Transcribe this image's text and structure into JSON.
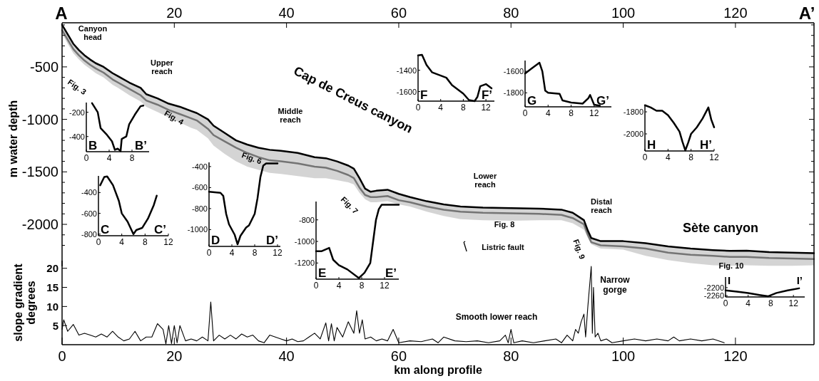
{
  "chart_data": [
    {
      "type": "line",
      "ylabel": "m water depth",
      "xlim": [
        0,
        134
      ],
      "x2lim": [
        0,
        134
      ],
      "x2ticks": [
        {
          "value": 0,
          "label": "A"
        },
        20,
        40,
        60,
        80,
        100,
        120,
        {
          "value": 134,
          "label": "A’"
        }
      ],
      "ylim": [
        -2400,
        -80
      ],
      "yticks": [
        {
          "value": -100,
          "label": null
        },
        {
          "value": -200,
          "label": null
        },
        {
          "value": -300,
          "label": null
        },
        {
          "value": -400,
          "label": null
        },
        -500,
        {
          "value": -600,
          "label": null
        },
        {
          "value": -700,
          "label": null
        },
        {
          "value": -800,
          "label": null
        },
        {
          "value": -900,
          "label": null
        },
        -1000,
        {
          "value": -1100,
          "label": null
        },
        {
          "value": -1200,
          "label": null
        },
        {
          "value": -1300,
          "label": null
        },
        {
          "value": -1400,
          "label": null
        },
        -1500,
        {
          "value": -1600,
          "label": null
        },
        {
          "value": -1700,
          "label": null
        },
        {
          "value": -1800,
          "label": null
        },
        {
          "value": -1900,
          "label": null
        },
        -2000,
        {
          "value": -2100,
          "label": null
        },
        {
          "value": -2200,
          "label": null
        }
      ],
      "x": [
        0,
        1,
        2,
        3,
        4,
        5,
        6,
        7.4,
        9,
        10,
        12,
        14,
        15,
        17,
        19,
        21,
        23,
        24,
        26,
        27,
        29,
        31,
        33,
        35,
        37,
        39,
        42,
        45,
        47,
        49,
        51,
        52,
        53,
        54,
        55,
        56,
        58,
        60,
        62,
        65,
        68,
        71,
        75,
        80,
        85,
        89,
        91,
        93,
        93.7,
        94.3,
        96,
        100,
        104,
        108,
        112,
        116,
        119,
        122,
        126,
        130,
        134
      ],
      "series": [
        {
          "color": "#000000",
          "values": [
            -100,
            -190,
            -280,
            -340,
            -390,
            -430,
            -465,
            -500,
            -560,
            -590,
            -650,
            -700,
            -760,
            -800,
            -850,
            -880,
            -920,
            -940,
            -1000,
            -1060,
            -1130,
            -1200,
            -1240,
            -1270,
            -1290,
            -1300,
            -1320,
            -1360,
            -1370,
            -1400,
            -1440,
            -1470,
            -1560,
            -1660,
            -1690,
            -1680,
            -1670,
            -1710,
            -1740,
            -1780,
            -1810,
            -1830,
            -1840,
            -1845,
            -1850,
            -1860,
            -1890,
            -1960,
            -2060,
            -2130,
            -2160,
            -2160,
            -2180,
            -2210,
            -2230,
            -2245,
            -2253,
            -2250,
            -2265,
            -2270,
            -2275
          ],
          "upper": [
            -100,
            -190,
            -280,
            -340,
            -390,
            -430,
            -465,
            -500,
            -560,
            -590,
            -650,
            -700,
            -760,
            -800,
            -850,
            -880,
            -920,
            -940,
            -1000,
            -1060,
            -1130,
            -1200,
            -1240,
            -1270,
            -1290,
            -1300,
            -1320,
            -1360,
            -1370,
            -1400,
            -1440,
            -1470,
            -1560,
            -1660,
            -1690,
            -1680,
            -1670,
            -1710,
            -1740,
            -1780,
            -1810,
            -1830,
            -1840,
            -1845,
            -1850,
            -1860,
            -1890,
            -1960,
            -2060,
            -2130,
            -2160,
            -2160,
            -2180,
            -2210,
            -2230,
            -2245,
            -2253,
            -2250,
            -2265,
            -2270,
            -2275
          ],
          "lower": [
            -180,
            -280,
            -370,
            -430,
            -480,
            -520,
            -560,
            -600,
            -670,
            -700,
            -770,
            -830,
            -880,
            -930,
            -980,
            -1030,
            -1080,
            -1100,
            -1180,
            -1250,
            -1330,
            -1400,
            -1450,
            -1480,
            -1510,
            -1520,
            -1540,
            -1560,
            -1560,
            -1580,
            -1600,
            -1620,
            -1700,
            -1760,
            -1790,
            -1790,
            -1780,
            -1810,
            -1830,
            -1880,
            -1920,
            -1950,
            -1960,
            -1965,
            -1960,
            -1960,
            -1990,
            -2050,
            -2130,
            -2190,
            -2230,
            -2240,
            -2300,
            -2340,
            -2370,
            -2390,
            -2395,
            -2390,
            -2395,
            -2395,
            -2390
          ]
        },
        {
          "color": "#8c8c8c",
          "values": [
            -150,
            -240,
            -330,
            -390,
            -440,
            -480,
            -515,
            -555,
            -620,
            -650,
            -710,
            -770,
            -820,
            -860,
            -910,
            -950,
            -990,
            -1010,
            -1090,
            -1150,
            -1210,
            -1270,
            -1320,
            -1360,
            -1390,
            -1400,
            -1420,
            -1450,
            -1460,
            -1490,
            -1530,
            -1560,
            -1650,
            -1720,
            -1740,
            -1740,
            -1730,
            -1770,
            -1790,
            -1830,
            -1860,
            -1880,
            -1890,
            -1895,
            -1900,
            -1910,
            -1940,
            -2000,
            -2100,
            -2170,
            -2200,
            -2210,
            -2230,
            -2270,
            -2290,
            -2300,
            -2310,
            -2310,
            -2320,
            -2325,
            -2330
          ]
        }
      ],
      "annotations": [
        "Canyon\nhead",
        "Upper\nreach",
        "Middle\nreach",
        "Cap de Creus canyon",
        "Lower\nreach",
        "Distal\nreach",
        "Sète canyon",
        "Fig. 3",
        "Fig. 4",
        "Fig. 6",
        "Fig. 7",
        "Fig. 8",
        "Fig. 9",
        "Fig. 10",
        "Listric fault"
      ]
    },
    {
      "type": "line",
      "xlabel": "km along profile",
      "ylabel": "slope gradient\ndegrees",
      "xlim": [
        0,
        134
      ],
      "xticks": [
        0,
        20,
        40,
        60,
        80,
        100,
        120
      ],
      "ylim": [
        0,
        22
      ],
      "yticks": [
        5,
        10,
        15,
        20
      ],
      "x": [
        0,
        0.3,
        1,
        2,
        3,
        4,
        5,
        6,
        7,
        8,
        9,
        10,
        11,
        12,
        13,
        14,
        15,
        16,
        17,
        18,
        18.5,
        19,
        19.5,
        20,
        20.5,
        21,
        22,
        23,
        24,
        25,
        26,
        26.5,
        27,
        28,
        29,
        30,
        31,
        32,
        33,
        34,
        35,
        36,
        37,
        38,
        39,
        40,
        41,
        42,
        43,
        44,
        45,
        46,
        47,
        47.5,
        48,
        48.5,
        49,
        50,
        51,
        52,
        52.5,
        53,
        53.5,
        54,
        55,
        56,
        57,
        58,
        59,
        60,
        62,
        64,
        66,
        67,
        68,
        70,
        72,
        74,
        76,
        78,
        79,
        79.5,
        80,
        80.5,
        82,
        84,
        86,
        88,
        89,
        90,
        91,
        91.5,
        92,
        92.5,
        93,
        93.3,
        93.7,
        94.3,
        94.5,
        94.7,
        95,
        95.5,
        96,
        97,
        98,
        100,
        102,
        104,
        106,
        108,
        109,
        110,
        112,
        114,
        116,
        118
      ],
      "series": [
        {
          "color": "#000000",
          "values": [
            4,
            6.5,
            3.5,
            5.3,
            2.5,
            3,
            2.5,
            2,
            2.8,
            2,
            3.5,
            2,
            1,
            1.5,
            3.5,
            1,
            2,
            2,
            5.5,
            4,
            0.2,
            5,
            0.3,
            5,
            0.5,
            5,
            1,
            1.5,
            1,
            2,
            1,
            11.2,
            1,
            2.5,
            1.5,
            2.5,
            1.5,
            2.8,
            2,
            2.5,
            1,
            0.5,
            2.5,
            2,
            1.5,
            1,
            1.5,
            0.8,
            1,
            2,
            3,
            1.5,
            5.7,
            1,
            5.5,
            1,
            4.5,
            2,
            6,
            3,
            8.9,
            3,
            6.5,
            1.5,
            2,
            1,
            1.5,
            1,
            4,
            0.5,
            1,
            0.8,
            1.5,
            0.5,
            2,
            1,
            0.8,
            1,
            0.5,
            1,
            2.5,
            0.5,
            4,
            0.5,
            1,
            0.5,
            1,
            1.5,
            0.5,
            2.5,
            1,
            4,
            3,
            6,
            8,
            2,
            10,
            20.5,
            3,
            15,
            2,
            3,
            1,
            1.5,
            0.5,
            1,
            1.5,
            1,
            1.5,
            1,
            2,
            1,
            1.5,
            1,
            1.5,
            0.5
          ]
        }
      ],
      "annotations": [
        "Smooth lower reach",
        "Narrow\ngorge"
      ]
    },
    {
      "type": "line",
      "xlim": [
        0,
        11
      ],
      "xticks": [
        0,
        4,
        8
      ],
      "ylim": [
        -525,
        -120
      ],
      "yticks": [
        -200,
        -400
      ],
      "x": [
        1,
        2,
        2.5,
        3.5,
        4.5,
        5,
        5.5,
        6,
        6.2,
        7,
        7.5,
        8.5,
        9.5,
        10
      ],
      "series": [
        {
          "color": "#000000",
          "values": [
            -125,
            -200,
            -330,
            -380,
            -440,
            -510,
            -500,
            -520,
            -420,
            -400,
            -300,
            -220,
            -150,
            -145
          ]
        }
      ],
      "annotations": [
        "B",
        "B’"
      ]
    },
    {
      "type": "line",
      "xlim": [
        0,
        12
      ],
      "xticks": [
        0,
        4,
        8,
        12
      ],
      "ylim": [
        -815,
        -240
      ],
      "yticks": [
        -400,
        -600,
        -800
      ],
      "x": [
        0.3,
        1,
        1.5,
        2.5,
        3.5,
        4,
        5,
        6,
        6.5,
        7.5,
        8.5,
        9.5,
        10
      ],
      "series": [
        {
          "color": "#000000",
          "values": [
            -330,
            -250,
            -245,
            -330,
            -480,
            -600,
            -680,
            -800,
            -760,
            -740,
            -650,
            -520,
            -430
          ]
        }
      ],
      "annotations": [
        "C",
        "C’"
      ]
    },
    {
      "type": "line",
      "xlim": [
        0,
        12.5
      ],
      "xticks": [
        0,
        4,
        8,
        12
      ],
      "ylim": [
        -1160,
        -360
      ],
      "yticks": [
        -400,
        -600,
        -800,
        -1000
      ],
      "x": [
        0,
        2,
        2.5,
        3,
        3.5,
        4.5,
        5,
        5.5,
        6.5,
        7,
        8,
        8.5,
        9,
        9.5,
        10,
        12
      ],
      "series": [
        {
          "color": "#000000",
          "values": [
            -640,
            -650,
            -680,
            -850,
            -950,
            -1050,
            -1140,
            -1060,
            -980,
            -960,
            -850,
            -700,
            -500,
            -390,
            -370,
            -370
          ]
        }
      ],
      "annotations": [
        "D",
        "D’"
      ]
    },
    {
      "type": "line",
      "xlim": [
        0,
        14.5
      ],
      "xticks": [
        0,
        4,
        8,
        12
      ],
      "ylim": [
        -1350,
        -630
      ],
      "yticks": [
        -800,
        -1000,
        -1200
      ],
      "x": [
        0,
        1,
        2.3,
        3,
        4,
        5.5,
        7.5,
        8.5,
        9.5,
        10,
        10.5,
        11,
        11.5,
        14.5
      ],
      "series": [
        {
          "color": "#000000",
          "values": [
            -1090,
            -1090,
            -1060,
            -1170,
            -1220,
            -1260,
            -1340,
            -1290,
            -1200,
            -1000,
            -800,
            -700,
            -660,
            -660
          ]
        }
      ],
      "annotations": [
        "E",
        "E’"
      ]
    },
    {
      "type": "line",
      "xlim": [
        0,
        13.5
      ],
      "xticks": [
        0,
        4,
        8,
        12
      ],
      "ylim": [
        -1690,
        -1255
      ],
      "yticks": [
        -1400,
        -1600
      ],
      "x": [
        0,
        0.7,
        1.5,
        2.5,
        5,
        6,
        8,
        9,
        10,
        10.5,
        11,
        12,
        13
      ],
      "series": [
        {
          "color": "#000000",
          "values": [
            -1260,
            -1255,
            -1350,
            -1420,
            -1470,
            -1540,
            -1620,
            -1680,
            -1690,
            -1650,
            -1550,
            -1530,
            -1570
          ]
        }
      ],
      "annotations": [
        "F",
        "F’"
      ]
    },
    {
      "type": "line",
      "xlim": [
        0,
        15
      ],
      "xticks": [
        0,
        4,
        8,
        12
      ],
      "ylim": [
        -1930,
        -1500
      ],
      "yticks": [
        -1600,
        -1800
      ],
      "x": [
        0,
        1,
        2.5,
        3,
        3.5,
        4,
        6,
        6.5,
        8,
        10,
        11,
        11.3,
        12,
        13
      ],
      "series": [
        {
          "color": "#000000",
          "values": [
            -1620,
            -1580,
            -1520,
            -1600,
            -1780,
            -1800,
            -1810,
            -1870,
            -1890,
            -1900,
            -1850,
            -1820,
            -1910,
            -1920
          ]
        }
      ],
      "annotations": [
        "G",
        "G’"
      ]
    },
    {
      "type": "line",
      "xlim": [
        0,
        12
      ],
      "xticks": [
        0,
        4,
        8,
        12
      ],
      "ylim": [
        -2155,
        -1735
      ],
      "yticks": [
        -1800,
        -2000
      ],
      "x": [
        0,
        1,
        2,
        3,
        4,
        5,
        6,
        6.5,
        7,
        7.5,
        8,
        9,
        10,
        11,
        11.5,
        12
      ],
      "series": [
        {
          "color": "#000000",
          "values": [
            -1740,
            -1760,
            -1790,
            -1790,
            -1830,
            -1900,
            -1980,
            -2070,
            -2150,
            -2080,
            -2000,
            -1940,
            -1860,
            -1760,
            -1870,
            -1940
          ]
        }
      ],
      "annotations": [
        "H",
        "H’"
      ]
    },
    {
      "type": "line",
      "xlim": [
        0,
        14
      ],
      "xticks": [
        0,
        4,
        8,
        12
      ],
      "ylim": [
        -2270,
        -2120
      ],
      "yticks": [
        -2200,
        -2260
      ],
      "x": [
        0,
        2,
        4,
        6,
        7.5,
        9,
        11,
        13
      ],
      "series": [
        {
          "color": "#000000",
          "values": [
            -2220,
            -2230,
            -2240,
            -2255,
            -2265,
            -2240,
            -2220,
            -2205
          ]
        }
      ],
      "annotations": [
        "I",
        "I’"
      ]
    }
  ]
}
